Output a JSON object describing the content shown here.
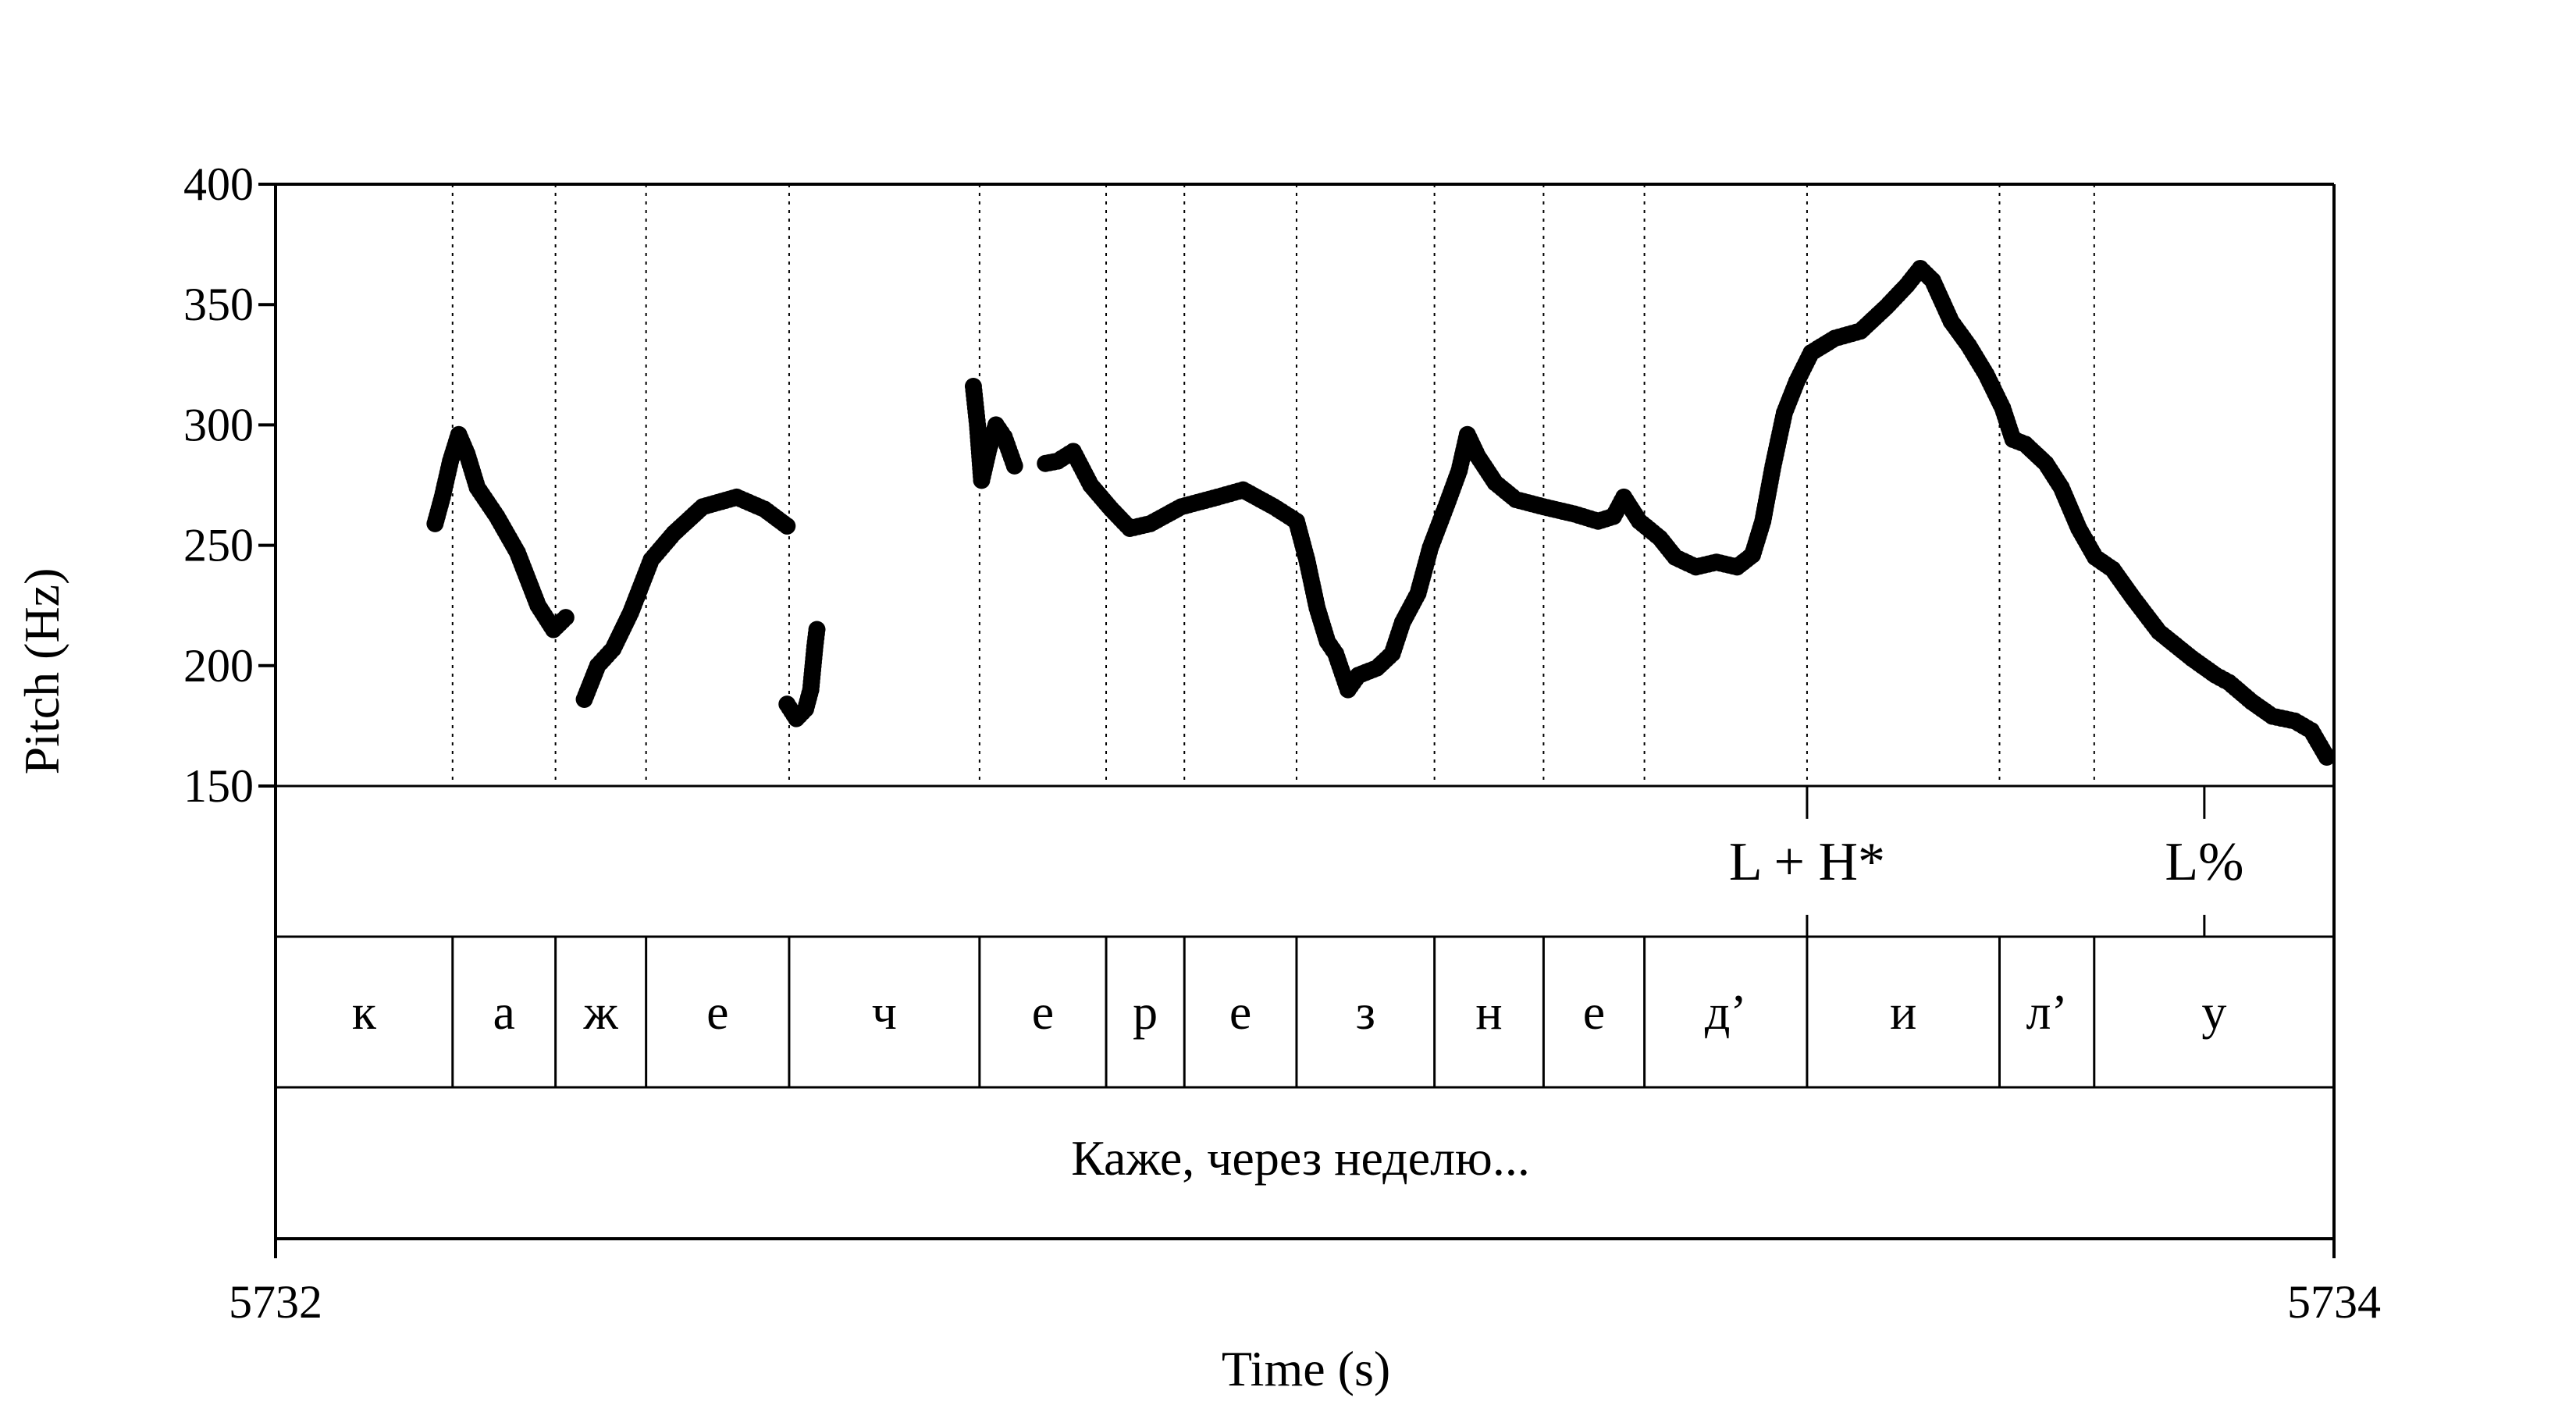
{
  "chart_data": {
    "type": "scatter",
    "title": "",
    "xlabel": "Time (s)",
    "ylabel": "Pitch (Hz)",
    "xlim": [
      5732,
      5734
    ],
    "ylim": [
      150,
      400
    ],
    "x_tick_labels": [
      "5732",
      "5734"
    ],
    "y_tick_labels": [
      "400",
      "350",
      "300",
      "250",
      "200",
      "150"
    ],
    "grid": "vertical dotted lines at segment boundaries",
    "segment_boundaries": [
      5732.172,
      5732.272,
      5732.36,
      5732.499,
      5732.684,
      5732.807,
      5732.883,
      5732.992,
      5733.126,
      5733.232,
      5733.33,
      5733.488,
      5733.675,
      5733.767
    ],
    "segments": [
      {
        "label": "к",
        "start": 5732.0,
        "end": 5732.172
      },
      {
        "label": "а",
        "start": 5732.172,
        "end": 5732.272
      },
      {
        "label": "ж",
        "start": 5732.272,
        "end": 5732.36
      },
      {
        "label": "е",
        "start": 5732.36,
        "end": 5732.499
      },
      {
        "label": "ч",
        "start": 5732.499,
        "end": 5732.684
      },
      {
        "label": "е",
        "start": 5732.684,
        "end": 5732.807
      },
      {
        "label": "р",
        "start": 5732.807,
        "end": 5732.883
      },
      {
        "label": "е",
        "start": 5732.883,
        "end": 5732.992
      },
      {
        "label": "з",
        "start": 5732.992,
        "end": 5733.126
      },
      {
        "label": "н",
        "start": 5733.126,
        "end": 5733.232
      },
      {
        "label": "е",
        "start": 5733.232,
        "end": 5733.33
      },
      {
        "label": "д’",
        "start": 5733.33,
        "end": 5733.488
      },
      {
        "label": "и",
        "start": 5733.488,
        "end": 5733.675
      },
      {
        "label": "л’",
        "start": 5733.675,
        "end": 5733.767
      },
      {
        "label": "у",
        "start": 5733.767,
        "end": 5734.0
      }
    ],
    "tones": [
      {
        "label": "L + H*",
        "time": 5733.488
      },
      {
        "label": "L%",
        "time": 5733.874
      }
    ],
    "sentence": "Каже, через неделю...",
    "pitch_contour_keypoints": [
      [
        [
          5732.155,
          259
        ],
        [
          5732.162,
          270
        ],
        [
          5732.17,
          285
        ],
        [
          5732.178,
          296
        ],
        [
          5732.186,
          288
        ],
        [
          5732.196,
          274
        ],
        [
          5732.215,
          262
        ],
        [
          5732.235,
          247
        ],
        [
          5732.255,
          225
        ],
        [
          5732.27,
          215
        ],
        [
          5732.282,
          220
        ]
      ],
      [
        [
          5732.3,
          186
        ],
        [
          5732.313,
          200
        ],
        [
          5732.328,
          207
        ],
        [
          5732.345,
          222
        ],
        [
          5732.365,
          244
        ],
        [
          5732.387,
          255
        ],
        [
          5732.415,
          266
        ],
        [
          5732.448,
          270
        ],
        [
          5732.475,
          265
        ],
        [
          5732.497,
          258
        ]
      ],
      [
        [
          5732.497,
          184
        ],
        [
          5732.506,
          178
        ],
        [
          5732.515,
          182
        ],
        [
          5732.52,
          190
        ],
        [
          5732.524,
          208
        ],
        [
          5732.526,
          215
        ]
      ],
      [
        [
          5732.678,
          316
        ],
        [
          5732.682,
          300
        ],
        [
          5732.686,
          277
        ],
        [
          5732.693,
          290
        ],
        [
          5732.7,
          300
        ],
        [
          5732.708,
          295
        ],
        [
          5732.718,
          283
        ]
      ],
      [
        [
          5732.748,
          284
        ],
        [
          5732.76,
          285
        ],
        [
          5732.775,
          289
        ],
        [
          5732.792,
          275
        ],
        [
          5732.812,
          265
        ],
        [
          5732.83,
          257
        ],
        [
          5732.85,
          259
        ],
        [
          5732.88,
          266
        ],
        [
          5732.915,
          270
        ],
        [
          5732.94,
          273
        ],
        [
          5732.97,
          266
        ],
        [
          5732.992,
          260
        ],
        [
          5733.002,
          244
        ],
        [
          5733.012,
          224
        ],
        [
          5733.022,
          210
        ],
        [
          5733.03,
          205
        ],
        [
          5733.042,
          190
        ],
        [
          5733.052,
          196
        ],
        [
          5733.07,
          199
        ],
        [
          5733.085,
          205
        ],
        [
          5733.095,
          218
        ],
        [
          5733.11,
          230
        ],
        [
          5733.122,
          249
        ],
        [
          5733.138,
          267
        ],
        [
          5733.15,
          281
        ],
        [
          5733.158,
          296
        ],
        [
          5733.168,
          287
        ],
        [
          5733.185,
          276
        ],
        [
          5733.205,
          269
        ],
        [
          5733.232,
          266
        ],
        [
          5733.262,
          263
        ],
        [
          5733.285,
          260
        ],
        [
          5733.3,
          262
        ],
        [
          5733.31,
          270
        ],
        [
          5733.325,
          260
        ],
        [
          5733.345,
          253
        ],
        [
          5733.36,
          245
        ],
        [
          5733.38,
          241
        ],
        [
          5733.4,
          243
        ],
        [
          5733.42,
          241
        ],
        [
          5733.435,
          246
        ],
        [
          5733.445,
          260
        ],
        [
          5733.455,
          283
        ],
        [
          5733.466,
          305
        ],
        [
          5733.478,
          318
        ],
        [
          5733.492,
          330
        ],
        [
          5733.515,
          336
        ],
        [
          5733.54,
          339
        ],
        [
          5733.565,
          349
        ],
        [
          5733.585,
          358
        ],
        [
          5733.598,
          365
        ],
        [
          5733.61,
          360
        ],
        [
          5733.628,
          343
        ],
        [
          5733.645,
          333
        ],
        [
          5733.662,
          321
        ],
        [
          5733.678,
          307
        ],
        [
          5733.688,
          294
        ],
        [
          5733.7,
          292
        ],
        [
          5733.72,
          284
        ],
        [
          5733.735,
          274
        ],
        [
          5733.752,
          257
        ],
        [
          5733.768,
          245
        ],
        [
          5733.785,
          240
        ],
        [
          5733.805,
          228
        ],
        [
          5733.83,
          214
        ],
        [
          5733.862,
          203
        ],
        [
          5733.885,
          196
        ],
        [
          5733.898,
          193
        ],
        [
          5733.92,
          185
        ],
        [
          5733.94,
          179
        ],
        [
          5733.962,
          177
        ],
        [
          5733.978,
          173
        ],
        [
          5733.993,
          162
        ]
      ]
    ]
  }
}
